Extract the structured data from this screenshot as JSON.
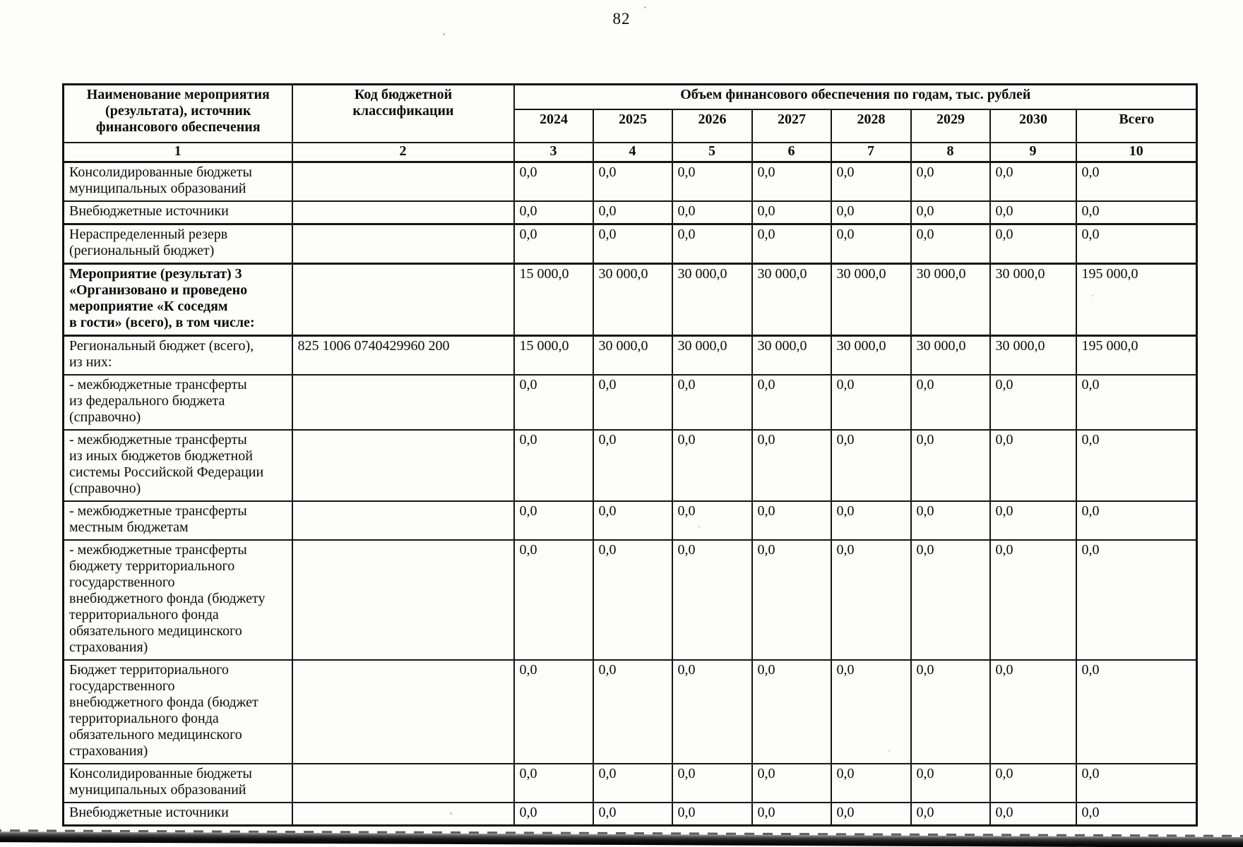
{
  "page": {
    "number": "82"
  },
  "table": {
    "header": {
      "col_name": "Наименование мероприятия\n(результата), источник\nфинансового обеспечения",
      "col_code": "Код бюджетной\nклассификации",
      "col_volume_group": "Объем финансового обеспечения по годам, тыс. рублей",
      "years": [
        "2024",
        "2025",
        "2026",
        "2027",
        "2028",
        "2029",
        "2030"
      ],
      "total_label": "Всего",
      "numbering": [
        "1",
        "2",
        "3",
        "4",
        "5",
        "6",
        "7",
        "8",
        "9",
        "10"
      ]
    },
    "rows": [
      {
        "name": "Консолидированные бюджеты\nмуниципальных образований",
        "code": "",
        "bold": false,
        "thick_top": false,
        "values": [
          "0,0",
          "0,0",
          "0,0",
          "0,0",
          "0,0",
          "0,0",
          "0,0",
          "0,0"
        ]
      },
      {
        "name": "Внебюджетные источники",
        "code": "",
        "bold": false,
        "thick_top": false,
        "values": [
          "0,0",
          "0,0",
          "0,0",
          "0,0",
          "0,0",
          "0,0",
          "0,0",
          "0,0"
        ]
      },
      {
        "name": "Нераспределенный резерв\n(региональный бюджет)",
        "code": "",
        "bold": false,
        "thick_top": true,
        "values": [
          "0,0",
          "0,0",
          "0,0",
          "0,0",
          "0,0",
          "0,0",
          "0,0",
          "0,0"
        ]
      },
      {
        "name": "Мероприятие (результат) 3\n«Организовано и проведено\nмероприятие «К соседям\nв гости» (всего), в том числе:",
        "code": "",
        "bold": true,
        "thick_top": true,
        "values": [
          "15 000,0",
          "30 000,0",
          "30 000,0",
          "30 000,0",
          "30 000,0",
          "30 000,0",
          "30 000,0",
          "195 000,0"
        ]
      },
      {
        "name": "Региональный бюджет (всего),\nиз них:",
        "code": "825 1006 0740429960 200",
        "bold": false,
        "thick_top": true,
        "values": [
          "15 000,0",
          "30 000,0",
          "30 000,0",
          "30 000,0",
          "30 000,0",
          "30 000,0",
          "30 000,0",
          "195 000,0"
        ]
      },
      {
        "name": "- межбюджетные трансферты\nиз федерального бюджета\n(справочно)",
        "code": "",
        "bold": false,
        "thick_top": false,
        "values": [
          "0,0",
          "0,0",
          "0,0",
          "0,0",
          "0,0",
          "0,0",
          "0,0",
          "0,0"
        ]
      },
      {
        "name": "- межбюджетные трансферты\nиз иных бюджетов бюджетной\nсистемы Российской Федерации\n(справочно)",
        "code": "",
        "bold": false,
        "thick_top": false,
        "values": [
          "0,0",
          "0,0",
          "0,0",
          "0,0",
          "0,0",
          "0,0",
          "0,0",
          "0,0"
        ]
      },
      {
        "name": "- межбюджетные трансферты\nместным бюджетам",
        "code": "",
        "bold": false,
        "thick_top": false,
        "values": [
          "0,0",
          "0,0",
          "0,0",
          "0,0",
          "0,0",
          "0,0",
          "0,0",
          "0,0"
        ]
      },
      {
        "name": "- межбюджетные трансферты\nбюджету территориального\nгосударственного\nвнебюджетного фонда (бюджету\nтерриториального фонда\nобязательного медицинского\nстрахования)",
        "code": "",
        "bold": false,
        "thick_top": false,
        "values": [
          "0,0",
          "0,0",
          "0,0",
          "0,0",
          "0,0",
          "0,0",
          "0,0",
          "0,0"
        ]
      },
      {
        "name": "Бюджет территориального\nгосударственного\nвнебюджетного фонда (бюджет\nтерриториального фонда\nобязательного медицинского\nстрахования)",
        "code": "",
        "bold": false,
        "thick_top": false,
        "values": [
          "0,0",
          "0,0",
          "0,0",
          "0,0",
          "0,0",
          "0,0",
          "0,0",
          "0,0"
        ]
      },
      {
        "name": "Консолидированные бюджеты\nмуниципальных образований",
        "code": "",
        "bold": false,
        "thick_top": false,
        "values": [
          "0,0",
          "0,0",
          "0,0",
          "0,0",
          "0,0",
          "0,0",
          "0,0",
          "0,0"
        ]
      },
      {
        "name": "Внебюджетные источники",
        "code": "",
        "bold": false,
        "thick_top": false,
        "values": [
          "0,0",
          "0,0",
          "0,0",
          "0,0",
          "0,0",
          "0,0",
          "0,0",
          "0,0"
        ]
      }
    ]
  }
}
